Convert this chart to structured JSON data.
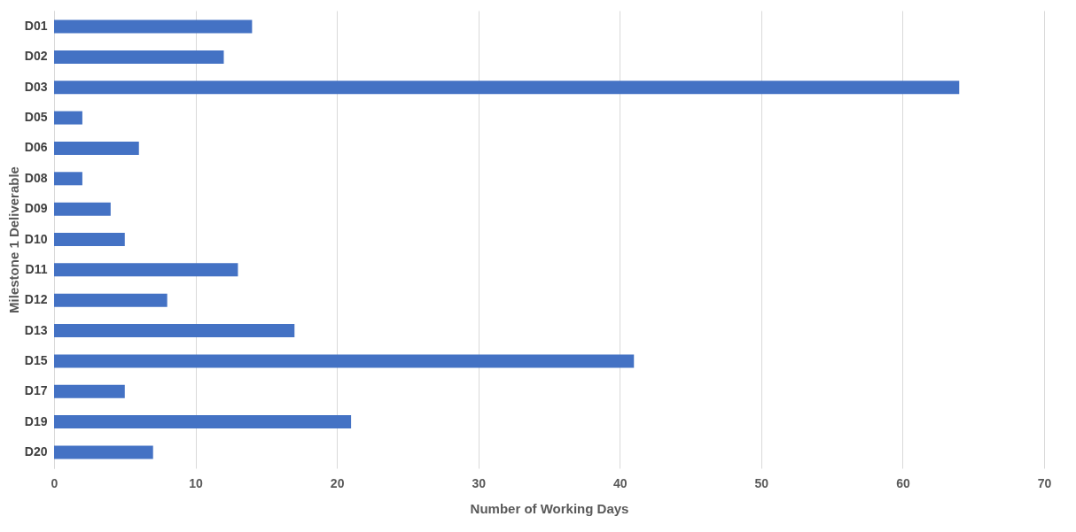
{
  "chart_data": {
    "type": "bar",
    "orientation": "horizontal",
    "xlabel": "Number of Working Days",
    "ylabel": "Milestone 1 Deliverable",
    "categories": [
      "D01",
      "D02",
      "D03",
      "D05",
      "D06",
      "D08",
      "D09",
      "D10",
      "D11",
      "D12",
      "D13",
      "D15",
      "D17",
      "D19",
      "D20"
    ],
    "values": [
      14,
      12,
      64,
      2,
      6,
      2,
      4,
      5,
      13,
      8,
      17,
      41,
      5,
      21,
      7
    ],
    "color": "#4472c4",
    "xlim": [
      0,
      70
    ],
    "xticks": [
      0,
      10,
      20,
      30,
      40,
      50,
      60,
      70
    ],
    "grid": "x"
  }
}
